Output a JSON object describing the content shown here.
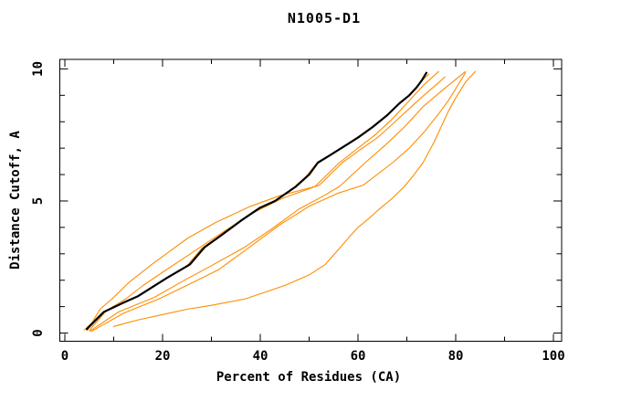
{
  "title": "N1005-D1",
  "colors": {
    "background": "#ffffff",
    "axis": "#000000",
    "main_curve": "#000000",
    "comparison_curve": "#ff8c00"
  },
  "chart_data": {
    "type": "line",
    "title": "N1005-D1",
    "xlabel": "Percent of Residues (CA)",
    "ylabel": "Distance Cutoff, A",
    "xlim": [
      -1.03,
      101.68
    ],
    "ylim": [
      -0.31,
      10.36
    ],
    "x_major_ticks": [
      0,
      20,
      40,
      60,
      80,
      100
    ],
    "x_tick_labels": [
      "0",
      "20",
      "40",
      "60",
      "80",
      "100"
    ],
    "x_minor_ticks": [
      10,
      30,
      50,
      70,
      90
    ],
    "y_major_ticks": [
      0,
      5,
      10
    ],
    "y_tick_labels": [
      "0",
      "5",
      "10"
    ],
    "y_minor_ticks": [
      1,
      2,
      3,
      4,
      6,
      7,
      8,
      9
    ],
    "grid": false,
    "legend_position": "none",
    "series": [
      {
        "name": "comparison-model-1",
        "color": "#ff8c00",
        "width": 1.1,
        "points": [
          [
            4.0,
            0.12
          ],
          [
            7.5,
            0.75
          ],
          [
            11.5,
            1.1
          ],
          [
            14.5,
            1.35
          ],
          [
            17.5,
            1.7
          ],
          [
            20.5,
            2.05
          ],
          [
            25.0,
            2.55
          ],
          [
            28.0,
            3.2
          ],
          [
            31.5,
            3.65
          ],
          [
            35.5,
            4.2
          ],
          [
            39.5,
            4.7
          ],
          [
            42.5,
            4.95
          ],
          [
            46.8,
            5.5
          ],
          [
            49.5,
            5.95
          ],
          [
            51.4,
            6.4
          ],
          [
            53.6,
            6.65
          ],
          [
            56.6,
            7.0
          ],
          [
            59.6,
            7.38
          ],
          [
            62.7,
            7.78
          ],
          [
            65.8,
            8.23
          ],
          [
            68.3,
            8.68
          ],
          [
            70.4,
            9.0
          ],
          [
            72.0,
            9.32
          ],
          [
            73.2,
            9.57
          ],
          [
            74.5,
            9.8
          ]
        ]
      },
      {
        "name": "comparison-model-2",
        "color": "#ff8c00",
        "width": 1.1,
        "points": [
          [
            4.6,
            0.1
          ],
          [
            7.2,
            0.9
          ],
          [
            9.7,
            1.3
          ],
          [
            13.0,
            1.9
          ],
          [
            17.8,
            2.6
          ],
          [
            21.5,
            3.1
          ],
          [
            25.2,
            3.6
          ],
          [
            31.0,
            4.2
          ],
          [
            38.0,
            4.8
          ],
          [
            44.0,
            5.2
          ],
          [
            51.2,
            5.55
          ],
          [
            56.2,
            6.45
          ],
          [
            60.0,
            7.0
          ],
          [
            63.5,
            7.5
          ],
          [
            67.0,
            8.1
          ],
          [
            70.5,
            8.8
          ],
          [
            73.5,
            9.4
          ],
          [
            76.5,
            9.9
          ]
        ]
      },
      {
        "name": "comparison-model-3",
        "color": "#ff8c00",
        "width": 1.1,
        "points": [
          [
            5.0,
            0.1
          ],
          [
            8.5,
            0.85
          ],
          [
            12.5,
            1.3
          ],
          [
            16.0,
            1.8
          ],
          [
            20.0,
            2.3
          ],
          [
            24.5,
            2.85
          ],
          [
            28.5,
            3.35
          ],
          [
            33.0,
            3.9
          ],
          [
            38.5,
            4.55
          ],
          [
            44.5,
            5.1
          ],
          [
            52.1,
            5.6
          ],
          [
            56.8,
            6.45
          ],
          [
            60.5,
            6.95
          ],
          [
            64.0,
            7.4
          ],
          [
            67.0,
            7.9
          ],
          [
            70.5,
            8.5
          ],
          [
            73.5,
            9.0
          ],
          [
            76.0,
            9.4
          ],
          [
            77.8,
            9.7
          ]
        ]
      },
      {
        "name": "comparison-model-4",
        "color": "#ff8c00",
        "width": 1.1,
        "points": [
          [
            5.2,
            0.08
          ],
          [
            11.0,
            0.8
          ],
          [
            18.3,
            1.35
          ],
          [
            24.0,
            1.95
          ],
          [
            30.0,
            2.55
          ],
          [
            36.8,
            3.25
          ],
          [
            42.0,
            3.9
          ],
          [
            48.0,
            4.7
          ],
          [
            53.0,
            5.2
          ],
          [
            56.2,
            5.55
          ],
          [
            61.5,
            6.45
          ],
          [
            65.5,
            7.1
          ],
          [
            69.5,
            7.8
          ],
          [
            73.5,
            8.6
          ],
          [
            78.0,
            9.3
          ],
          [
            82.0,
            9.9
          ]
        ]
      },
      {
        "name": "comparison-model-5",
        "color": "#ff8c00",
        "width": 1.1,
        "points": [
          [
            5.4,
            0.06
          ],
          [
            12.0,
            0.75
          ],
          [
            19.3,
            1.3
          ],
          [
            25.5,
            1.85
          ],
          [
            31.5,
            2.4
          ],
          [
            37.8,
            3.25
          ],
          [
            44.0,
            4.1
          ],
          [
            50.0,
            4.8
          ],
          [
            56.0,
            5.3
          ],
          [
            61.1,
            5.6
          ],
          [
            67.1,
            6.45
          ],
          [
            70.5,
            7.0
          ],
          [
            73.5,
            7.6
          ],
          [
            76.5,
            8.3
          ],
          [
            78.5,
            8.8
          ],
          [
            80.5,
            9.4
          ],
          [
            82.0,
            9.85
          ]
        ]
      },
      {
        "name": "comparison-model-6-outlier",
        "color": "#ff8c00",
        "width": 1.1,
        "points": [
          [
            10.0,
            0.25
          ],
          [
            15.0,
            0.5
          ],
          [
            20.0,
            0.7
          ],
          [
            25.0,
            0.9
          ],
          [
            30.0,
            1.05
          ],
          [
            37.0,
            1.3
          ],
          [
            45.0,
            1.8
          ],
          [
            50.0,
            2.2
          ],
          [
            53.3,
            2.6
          ],
          [
            56.4,
            3.25
          ],
          [
            58.5,
            3.7
          ],
          [
            60.0,
            4.0
          ],
          [
            62.0,
            4.3
          ],
          [
            64.1,
            4.65
          ],
          [
            67.0,
            5.1
          ],
          [
            69.5,
            5.55
          ],
          [
            71.5,
            6.0
          ],
          [
            73.3,
            6.45
          ],
          [
            75.5,
            7.2
          ],
          [
            77.0,
            7.8
          ],
          [
            78.5,
            8.4
          ],
          [
            80.0,
            8.9
          ],
          [
            82.0,
            9.5
          ],
          [
            84.0,
            9.9
          ]
        ]
      },
      {
        "name": "predicted-model-main",
        "color": "#000000",
        "width": 2.2,
        "points": [
          [
            4.5,
            0.15
          ],
          [
            8.0,
            0.8
          ],
          [
            12.0,
            1.15
          ],
          [
            15.0,
            1.4
          ],
          [
            18.0,
            1.75
          ],
          [
            21.0,
            2.1
          ],
          [
            25.6,
            2.6
          ],
          [
            28.6,
            3.25
          ],
          [
            32.0,
            3.7
          ],
          [
            36.0,
            4.25
          ],
          [
            40.0,
            4.75
          ],
          [
            43.0,
            5.0
          ],
          [
            47.3,
            5.55
          ],
          [
            50.0,
            6.0
          ],
          [
            51.8,
            6.45
          ],
          [
            54.0,
            6.7
          ],
          [
            57.0,
            7.05
          ],
          [
            60.0,
            7.4
          ],
          [
            63.0,
            7.8
          ],
          [
            66.0,
            8.25
          ],
          [
            68.5,
            8.7
          ],
          [
            70.5,
            9.0
          ],
          [
            72.0,
            9.3
          ],
          [
            73.0,
            9.55
          ],
          [
            74.0,
            9.85
          ]
        ]
      }
    ]
  }
}
